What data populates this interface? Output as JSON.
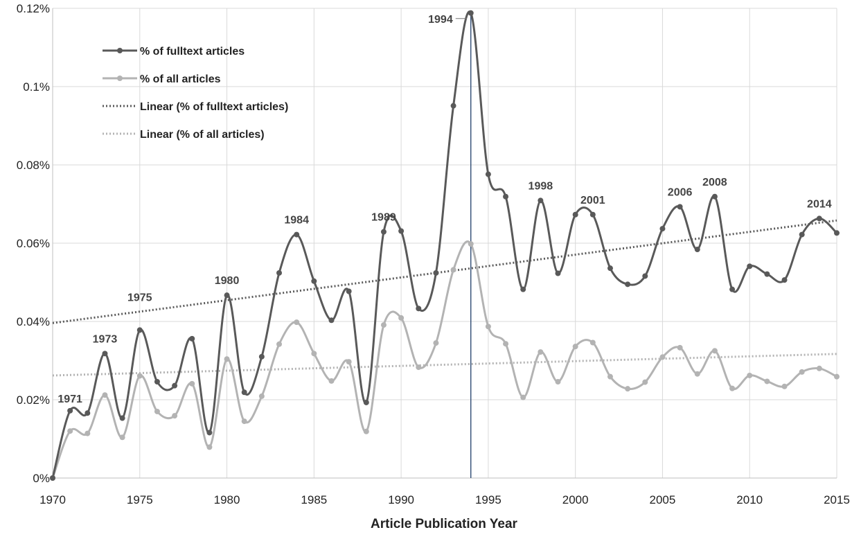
{
  "chart_data": {
    "type": "line",
    "xlabel": "Article Publication Year",
    "ylabel": "",
    "xlim": [
      1970,
      2015
    ],
    "ylim": [
      0,
      0.12
    ],
    "grid": true,
    "x_ticks": [
      "1970",
      "1975",
      "1980",
      "1985",
      "1990",
      "1995",
      "2000",
      "2005",
      "2010",
      "2015"
    ],
    "y_ticks": [
      "0%",
      "0.02%",
      "0.04%",
      "0.06%",
      "0.08%",
      "0.1%",
      "0.12%"
    ],
    "y_tick_values": [
      0,
      0.02,
      0.04,
      0.06,
      0.08,
      0.1,
      0.12
    ],
    "legend_position": "top-left",
    "x": [
      1970,
      1971,
      1972,
      1973,
      1974,
      1975,
      1976,
      1977,
      1978,
      1979,
      1980,
      1981,
      1982,
      1983,
      1984,
      1985,
      1986,
      1987,
      1988,
      1989,
      1990,
      1991,
      1992,
      1993,
      1994,
      1995,
      1996,
      1997,
      1998,
      1999,
      2000,
      2001,
      2002,
      2003,
      2004,
      2005,
      2006,
      2007,
      2008,
      2009,
      2010,
      2011,
      2012,
      2013,
      2014,
      2015
    ],
    "series": [
      {
        "name": "% of fulltext articles",
        "color": "#595959",
        "values": [
          0,
          0.0172,
          0.0166,
          0.0318,
          0.0153,
          0.0378,
          0.0246,
          0.0236,
          0.0356,
          0.0116,
          0.0467,
          0.0219,
          0.031,
          0.0524,
          0.0622,
          0.0503,
          0.0403,
          0.0477,
          0.0193,
          0.0629,
          0.0631,
          0.0433,
          0.0524,
          0.0951,
          0.1188,
          0.0776,
          0.0719,
          0.0482,
          0.0709,
          0.0523,
          0.0673,
          0.0673,
          0.0536,
          0.0495,
          0.0516,
          0.0637,
          0.0693,
          0.0584,
          0.0719,
          0.0482,
          0.0541,
          0.0521,
          0.0506,
          0.0622,
          0.0663,
          0.0626
        ]
      },
      {
        "name": "% of all articles",
        "color": "#b3b3b3",
        "values": [
          0,
          0.012,
          0.0114,
          0.0212,
          0.0104,
          0.0261,
          0.017,
          0.0159,
          0.0241,
          0.0079,
          0.0304,
          0.0145,
          0.0209,
          0.0342,
          0.0398,
          0.0318,
          0.0248,
          0.0297,
          0.0119,
          0.0391,
          0.0409,
          0.0283,
          0.0345,
          0.0532,
          0.0598,
          0.0387,
          0.0343,
          0.0206,
          0.0322,
          0.0246,
          0.0336,
          0.0346,
          0.0259,
          0.0228,
          0.0245,
          0.0309,
          0.0333,
          0.0266,
          0.0325,
          0.0229,
          0.0262,
          0.0247,
          0.0234,
          0.0271,
          0.028,
          0.0259
        ]
      },
      {
        "name": "Linear  (% of fulltext articles)",
        "color": "#595959",
        "style": "dotted",
        "trend": [
          [
            1970,
            0.0396
          ],
          [
            2015,
            0.0658
          ]
        ]
      },
      {
        "name": "Linear  (% of all articles)",
        "color": "#b3b3b3",
        "style": "dotted",
        "trend": [
          [
            1970,
            0.0262
          ],
          [
            2015,
            0.0317
          ]
        ]
      }
    ],
    "annotations": [
      {
        "text": "1971",
        "x": 1971
      },
      {
        "text": "1973",
        "x": 1973
      },
      {
        "text": "1975",
        "x": 1975
      },
      {
        "text": "1980",
        "x": 1980
      },
      {
        "text": "1984",
        "x": 1984
      },
      {
        "text": "1989",
        "x": 1989
      },
      {
        "text": "1994",
        "x": 1994
      },
      {
        "text": "1998",
        "x": 1998
      },
      {
        "text": "2001",
        "x": 2001
      },
      {
        "text": "2006",
        "x": 2006
      },
      {
        "text": "2008",
        "x": 2008
      },
      {
        "text": "2014",
        "x": 2014
      }
    ],
    "reference_line": {
      "x": 1994,
      "color": "#2d4a73"
    }
  }
}
